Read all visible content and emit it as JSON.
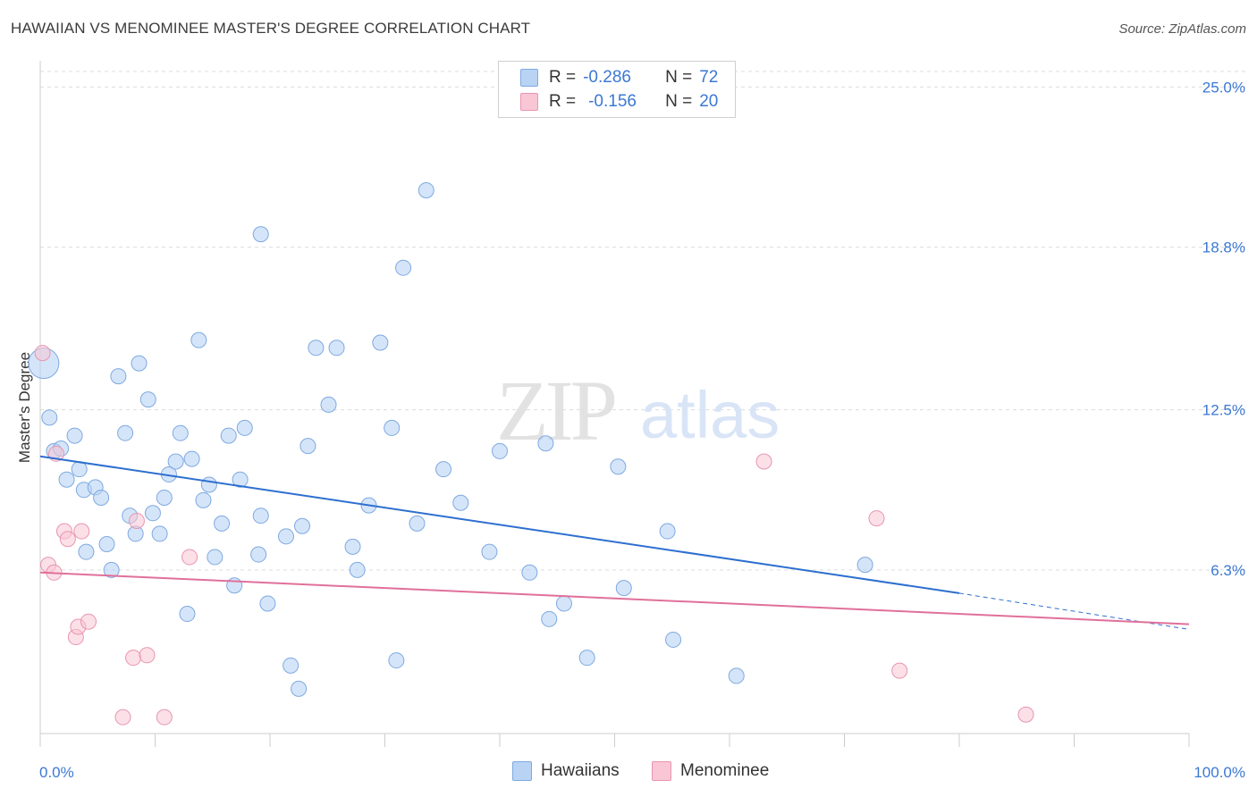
{
  "header": {
    "title": "HAWAIIAN VS MENOMINEE MASTER'S DEGREE CORRELATION CHART",
    "source": "Source: ZipAtlas.com"
  },
  "legend": {
    "r_label": "R =",
    "n_label": "N =",
    "series1": {
      "r": "-0.286",
      "n": "72"
    },
    "series2": {
      "r": "-0.156",
      "n": "20"
    },
    "bottom1": "Hawaiians",
    "bottom2": "Menominee"
  },
  "watermark": {
    "zip": "ZIP",
    "atlas": "atlas"
  },
  "colors": {
    "blue_fill": "#b9d3f5",
    "blue_stroke": "#7ea9e0",
    "blue_line": "#2d6fcf",
    "pink_fill": "#f9c6d6",
    "pink_stroke": "#e895b0",
    "pink_line": "#e0709a",
    "tick_label": "#3b78d4",
    "grid": "#dcdcdc"
  },
  "chart_data": {
    "type": "scatter",
    "title": "HAWAIIAN VS MENOMINEE MASTER'S DEGREE CORRELATION CHART",
    "ylabel": "Master's Degree",
    "xlabel": "",
    "xlim": [
      0,
      100
    ],
    "ylim": [
      0,
      25.6
    ],
    "x_tick_labels": [
      "0.0%",
      "100.0%"
    ],
    "y_ticks": [
      6.3,
      12.5,
      18.8,
      25.0
    ],
    "y_tick_labels": [
      "6.3%",
      "12.5%",
      "18.8%",
      "25.0%"
    ],
    "grid": "horizontal dashed",
    "legend_position": "top-center",
    "series": [
      {
        "name": "Hawaiians",
        "r": -0.286,
        "n": 72,
        "trend": {
          "x0": 0,
          "y0": 10.7,
          "x1": 80,
          "y1": 5.4,
          "dash_to_x": 100,
          "dash_to_y": 4.0
        },
        "points": [
          [
            0.3,
            14.3
          ],
          [
            0.8,
            12.2
          ],
          [
            1.2,
            10.9
          ],
          [
            1.8,
            11.0
          ],
          [
            3.0,
            11.5
          ],
          [
            2.3,
            9.8
          ],
          [
            3.4,
            10.2
          ],
          [
            3.8,
            9.4
          ],
          [
            4.0,
            7.0
          ],
          [
            4.8,
            9.5
          ],
          [
            5.3,
            9.1
          ],
          [
            5.8,
            7.3
          ],
          [
            6.2,
            6.3
          ],
          [
            6.8,
            13.8
          ],
          [
            7.4,
            11.6
          ],
          [
            7.8,
            8.4
          ],
          [
            8.3,
            7.7
          ],
          [
            8.6,
            14.3
          ],
          [
            9.4,
            12.9
          ],
          [
            9.8,
            8.5
          ],
          [
            10.4,
            7.7
          ],
          [
            10.8,
            9.1
          ],
          [
            11.2,
            10.0
          ],
          [
            11.8,
            10.5
          ],
          [
            12.2,
            11.6
          ],
          [
            12.8,
            4.6
          ],
          [
            13.2,
            10.6
          ],
          [
            13.8,
            15.2
          ],
          [
            14.2,
            9.0
          ],
          [
            14.7,
            9.6
          ],
          [
            15.2,
            6.8
          ],
          [
            15.8,
            8.1
          ],
          [
            16.4,
            11.5
          ],
          [
            16.9,
            5.7
          ],
          [
            17.4,
            9.8
          ],
          [
            17.8,
            11.8
          ],
          [
            19.2,
            19.3
          ],
          [
            19.0,
            6.9
          ],
          [
            19.2,
            8.4
          ],
          [
            19.8,
            5.0
          ],
          [
            21.4,
            7.6
          ],
          [
            21.8,
            2.6
          ],
          [
            22.5,
            1.7
          ],
          [
            22.8,
            8.0
          ],
          [
            23.3,
            11.1
          ],
          [
            24.0,
            14.9
          ],
          [
            25.1,
            12.7
          ],
          [
            25.8,
            14.9
          ],
          [
            27.2,
            7.2
          ],
          [
            27.6,
            6.3
          ],
          [
            28.6,
            8.8
          ],
          [
            29.6,
            15.1
          ],
          [
            30.6,
            11.8
          ],
          [
            31.0,
            2.8
          ],
          [
            31.6,
            18.0
          ],
          [
            32.8,
            8.1
          ],
          [
            33.6,
            21.0
          ],
          [
            35.1,
            10.2
          ],
          [
            36.6,
            8.9
          ],
          [
            39.1,
            7.0
          ],
          [
            40.0,
            10.9
          ],
          [
            42.6,
            6.2
          ],
          [
            44.0,
            11.2
          ],
          [
            44.3,
            4.4
          ],
          [
            45.6,
            5.0
          ],
          [
            47.6,
            2.9
          ],
          [
            50.3,
            10.3
          ],
          [
            50.8,
            5.6
          ],
          [
            54.6,
            7.8
          ],
          [
            55.1,
            3.6
          ],
          [
            60.6,
            2.2
          ],
          [
            71.8,
            6.5
          ]
        ]
      },
      {
        "name": "Menominee",
        "r": -0.156,
        "n": 20,
        "trend": {
          "x0": 0,
          "y0": 6.2,
          "x1": 100,
          "y1": 4.2
        },
        "points": [
          [
            0.2,
            14.7
          ],
          [
            0.7,
            6.5
          ],
          [
            1.2,
            6.2
          ],
          [
            1.4,
            10.8
          ],
          [
            2.1,
            7.8
          ],
          [
            2.4,
            7.5
          ],
          [
            3.1,
            3.7
          ],
          [
            3.3,
            4.1
          ],
          [
            3.6,
            7.8
          ],
          [
            4.2,
            4.3
          ],
          [
            7.2,
            0.6
          ],
          [
            8.1,
            2.9
          ],
          [
            8.4,
            8.2
          ],
          [
            9.3,
            3.0
          ],
          [
            10.8,
            0.6
          ],
          [
            13.0,
            6.8
          ],
          [
            63.0,
            10.5
          ],
          [
            72.8,
            8.3
          ],
          [
            74.8,
            2.4
          ],
          [
            85.8,
            0.7
          ]
        ]
      }
    ]
  }
}
